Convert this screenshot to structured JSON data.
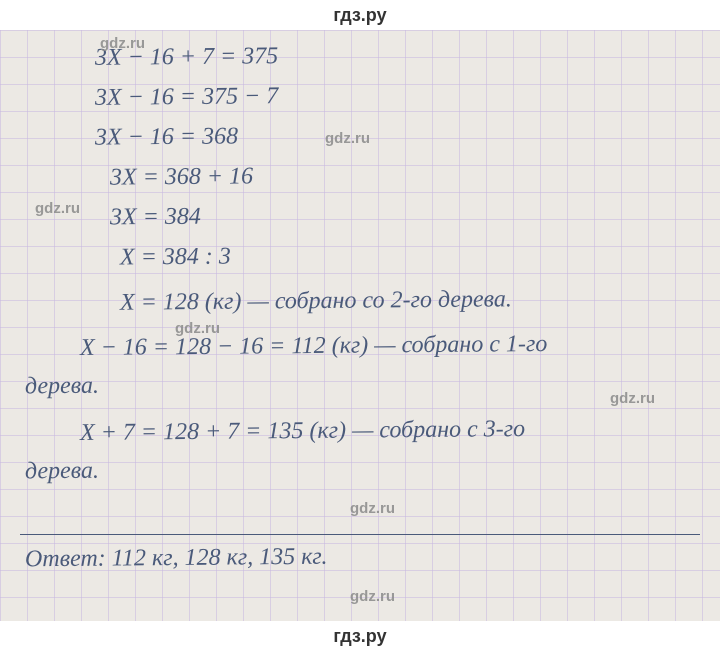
{
  "header": {
    "title": "гдз.ру"
  },
  "footer": {
    "title": "гдз.ру"
  },
  "grid": {
    "cell_size": 27,
    "line_color": "#c8b8e0",
    "bg_color": "#ece9e4"
  },
  "lines": {
    "l1": "3X − 16 + 7 = 375",
    "l2": "3X − 16 = 375 − 7",
    "l3": "3X − 16 = 368",
    "l4": "3X = 368 + 16",
    "l5": "3X = 384",
    "l6": "X = 384 : 3",
    "l7": "X = 128 (кг) — собрано со 2-го дерева.",
    "l8": "X − 16 = 128 − 16 = 112 (кг) — собрано с 1-го",
    "l8b": "дерева.",
    "l9": "X + 7 = 128 + 7 = 135 (кг) — собрано с 3-го",
    "l9b": "дерева.",
    "l10": "Ответ: 112 кг, 128 кг, 135 кг."
  },
  "watermarks": {
    "w1": "gdz.ru",
    "w2": "gdz.ru",
    "w3": "gdz.ru",
    "w4": "gdz.ru",
    "w5": "gdz.ru",
    "w6": "gdz.ru",
    "w7": "gdz.ru"
  },
  "style": {
    "hand_color": "#4a5a7a",
    "hand_fontsize": 24,
    "wm_color": "#8a8a8a",
    "wm_fontsize": 15,
    "header_bg": "#ffffff",
    "header_color": "#333333"
  }
}
